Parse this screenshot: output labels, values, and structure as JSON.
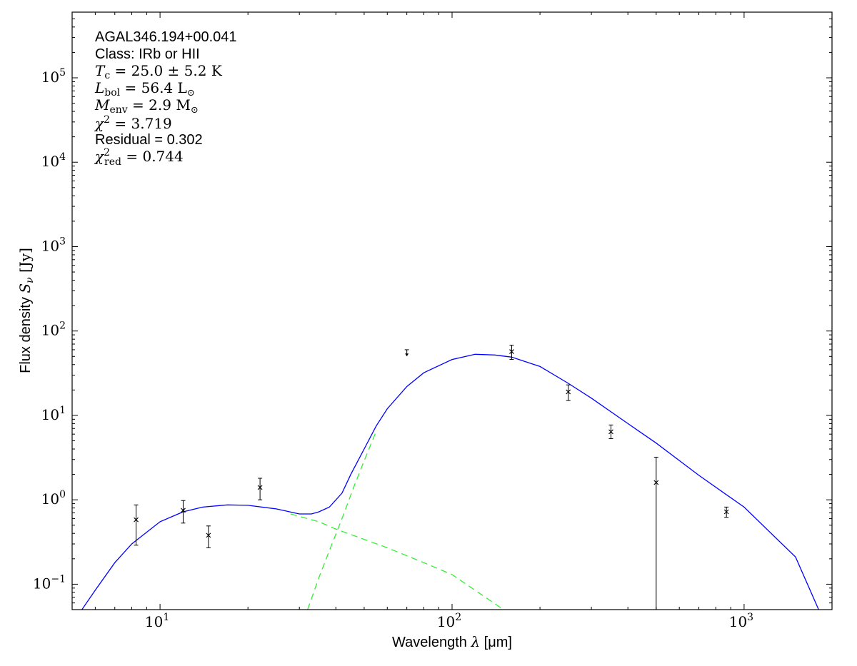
{
  "chart_data": {
    "type": "scatter",
    "xscale": "log",
    "yscale": "log",
    "xlim": [
      5,
      2000
    ],
    "ylim": [
      0.05,
      600000
    ],
    "xlabel_text": "Wavelength ",
    "xlabel_symbol": "λ",
    "xlabel_unit": " [μm]",
    "ylabel_text": "Flux density ",
    "ylabel_symbol": "S",
    "ylabel_sub": "ν",
    "ylabel_unit": " [Jy]",
    "x_ticks": [
      {
        "value": 10,
        "base": "10",
        "exp": "1"
      },
      {
        "value": 100,
        "base": "10",
        "exp": "2"
      },
      {
        "value": 1000,
        "base": "10",
        "exp": "3"
      }
    ],
    "y_ticks": [
      {
        "value": 0.1,
        "base": "10",
        "exp": "−1"
      },
      {
        "value": 1,
        "base": "10",
        "exp": "0"
      },
      {
        "value": 10,
        "base": "10",
        "exp": "1"
      },
      {
        "value": 100,
        "base": "10",
        "exp": "2"
      },
      {
        "value": 1000,
        "base": "10",
        "exp": "3"
      },
      {
        "value": 10000,
        "base": "10",
        "exp": "4"
      },
      {
        "value": 100000,
        "base": "10",
        "exp": "5"
      }
    ],
    "annotations": {
      "source": "AGAL346.194+00.041",
      "class_line": "Class: IRb or HII",
      "tc_sym": "T",
      "tc_sub": "c",
      "tc_val": " = 25.0 ± 5.2 K",
      "lbol_sym": "L",
      "lbol_sub": "bol",
      "lbol_val": " = 56.4 L",
      "lbol_sun": "⊙",
      "menv_sym": "M",
      "menv_sub": "env",
      "menv_val": " = 2.9 M",
      "menv_sun": "⊙",
      "chi_sym": "χ",
      "chi_sup": "2",
      "chi_val": " = 3.719",
      "residual": "Residual = 0.302",
      "chired_sym": "χ",
      "chired_sup": "2",
      "chired_sub": "red",
      "chired_val": " = 0.744"
    },
    "points": [
      {
        "x": 8.28,
        "y": 0.58,
        "ylo": 0.29,
        "yhi": 0.87
      },
      {
        "x": 12.0,
        "y": 0.75,
        "ylo": 0.53,
        "yhi": 0.98
      },
      {
        "x": 14.65,
        "y": 0.38,
        "ylo": 0.27,
        "yhi": 0.49
      },
      {
        "x": 22.0,
        "y": 1.4,
        "ylo": 1.0,
        "yhi": 1.8
      },
      {
        "x": 160,
        "y": 57,
        "ylo": 46,
        "yhi": 68
      },
      {
        "x": 250,
        "y": 19,
        "ylo": 15,
        "yhi": 23
      },
      {
        "x": 350,
        "y": 6.4,
        "ylo": 5.3,
        "yhi": 7.7
      },
      {
        "x": 500,
        "y": 1.6,
        "ylo": 0.05,
        "yhi": 3.2
      },
      {
        "x": 870,
        "y": 0.72,
        "ylo": 0.62,
        "yhi": 0.82
      }
    ],
    "upper_limits": [
      {
        "x": 70,
        "y": 60,
        "y_arrow_end": 51
      }
    ],
    "series": [
      {
        "type": "line",
        "color": "#0000ff",
        "dash": "",
        "points": [
          [
            5.4,
            0.05
          ],
          [
            6,
            0.085
          ],
          [
            7,
            0.18
          ],
          [
            8,
            0.3
          ],
          [
            10,
            0.55
          ],
          [
            12,
            0.72
          ],
          [
            14,
            0.82
          ],
          [
            17,
            0.87
          ],
          [
            20,
            0.86
          ],
          [
            25,
            0.78
          ],
          [
            30,
            0.68
          ],
          [
            33,
            0.68
          ],
          [
            35,
            0.72
          ],
          [
            38,
            0.82
          ],
          [
            42,
            1.2
          ],
          [
            45,
            2.0
          ],
          [
            50,
            4.0
          ],
          [
            55,
            7.5
          ],
          [
            60,
            12
          ],
          [
            70,
            22
          ],
          [
            80,
            32
          ],
          [
            100,
            46
          ],
          [
            120,
            53
          ],
          [
            140,
            52
          ],
          [
            160,
            49
          ],
          [
            200,
            38
          ],
          [
            250,
            24
          ],
          [
            300,
            16
          ],
          [
            400,
            8
          ],
          [
            500,
            4.7
          ],
          [
            700,
            1.95
          ],
          [
            1000,
            0.82
          ],
          [
            1500,
            0.21
          ],
          [
            1800,
            0.05
          ]
        ]
      },
      {
        "type": "line",
        "color": "#33ee33",
        "dash": "9 6",
        "points": [
          [
            28,
            0.68
          ],
          [
            35,
            0.55
          ],
          [
            40,
            0.45
          ],
          [
            50,
            0.34
          ],
          [
            60,
            0.27
          ],
          [
            80,
            0.18
          ],
          [
            100,
            0.13
          ],
          [
            150,
            0.05
          ]
        ]
      },
      {
        "type": "line",
        "color": "#33ee33",
        "dash": "9 6",
        "points": [
          [
            32,
            0.05
          ],
          [
            35,
            0.12
          ],
          [
            38,
            0.25
          ],
          [
            42,
            0.6
          ],
          [
            46,
            1.4
          ],
          [
            50,
            2.9
          ],
          [
            55,
            6.5
          ]
        ]
      }
    ]
  }
}
